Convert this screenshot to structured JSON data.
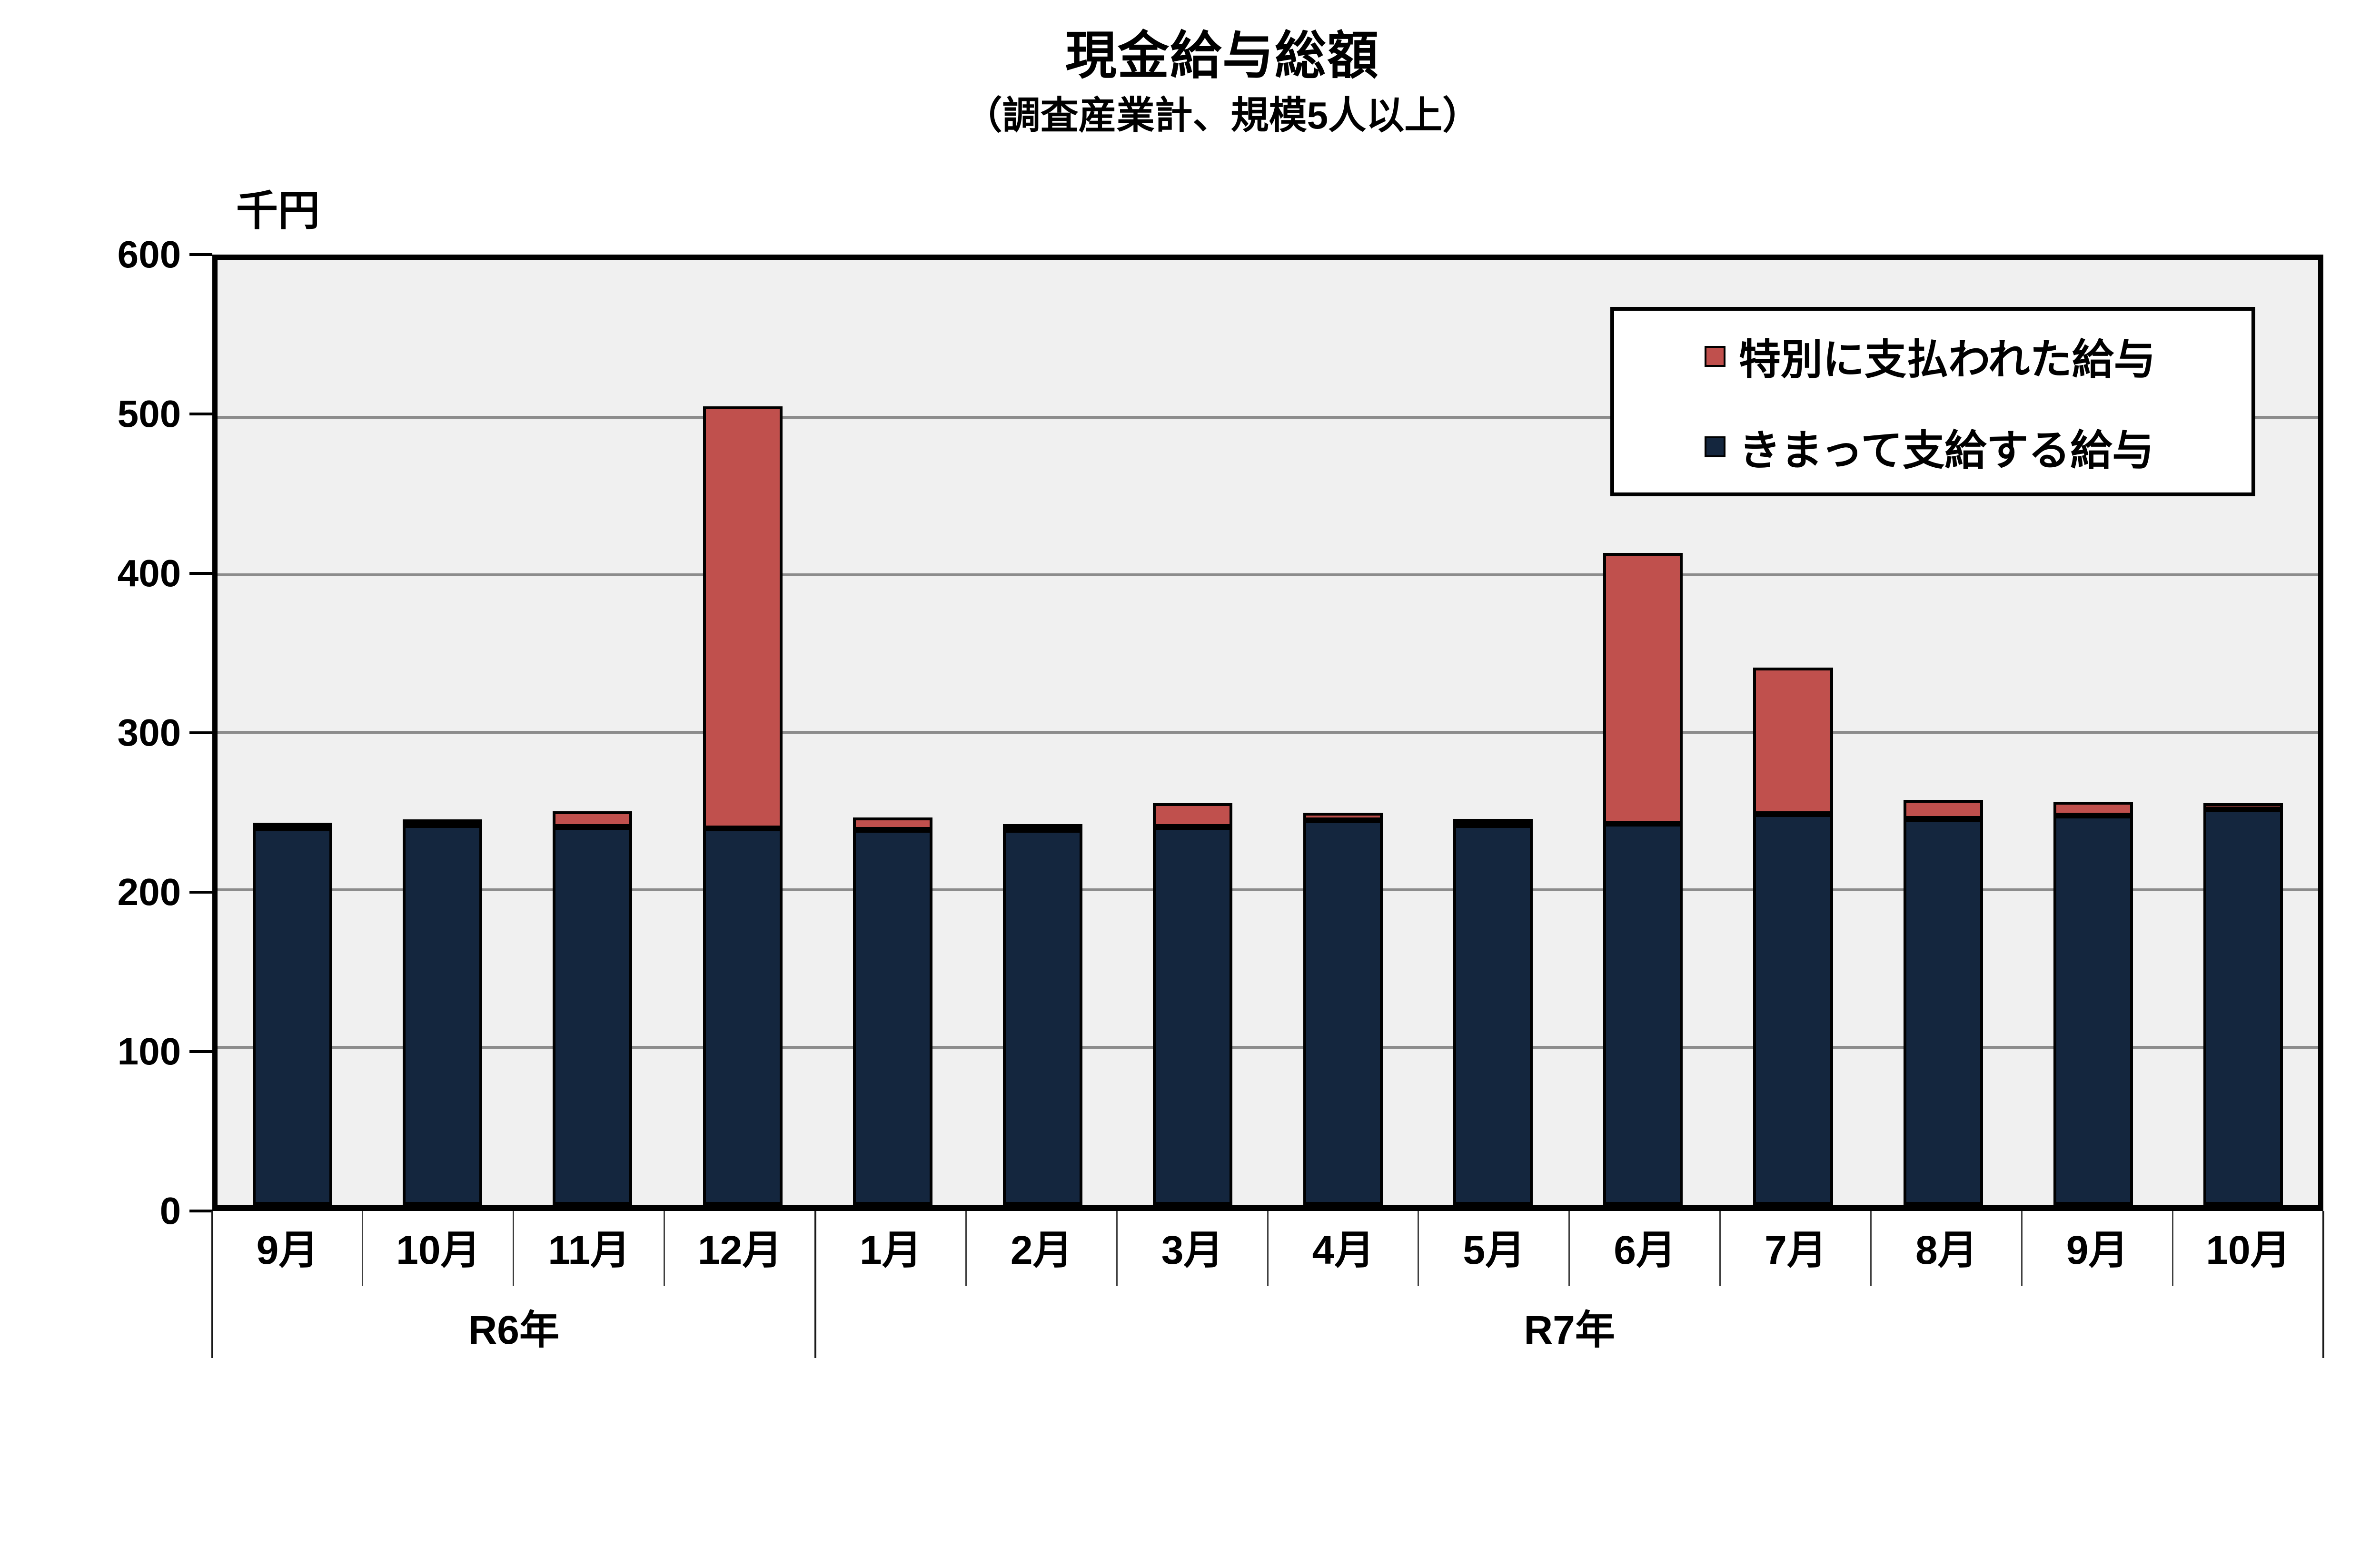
{
  "title": "現金給与総額",
  "subtitle": "（調査産業計、規模5人以上）",
  "y_axis": {
    "unit_label": "千円",
    "tick_values": [
      600,
      500,
      400,
      300,
      200,
      100,
      0
    ]
  },
  "legend": [
    {
      "label": "特別に支払われた給与",
      "color": "#C0504D"
    },
    {
      "label": "きまって支給する給与",
      "color": "#14263E"
    }
  ],
  "colors": {
    "plot_background": "#F0F0F0",
    "gridline": "#8C8C8C",
    "bar_border": "#000000",
    "special_pay_red": "#C0504D",
    "regular_pay_navy": "#14263E"
  },
  "chart_data": {
    "type": "bar",
    "stacked": true,
    "title": "現金給与総額",
    "subtitle": "（調査産業計、規模5人以上）",
    "ylabel": "千円",
    "ylim": [
      0,
      600
    ],
    "y_tick_step": 100,
    "grid": true,
    "legend_position": "upper right inside plot",
    "categories": [
      "9月",
      "10月",
      "11月",
      "12月",
      "1月",
      "2月",
      "3月",
      "4月",
      "5月",
      "6月",
      "7月",
      "8月",
      "9月",
      "10月"
    ],
    "category_groups": [
      {
        "label": "R6年",
        "start": 0,
        "count": 4
      },
      {
        "label": "R7年",
        "start": 4,
        "count": 10
      }
    ],
    "series": [
      {
        "name": "きまって支給する給与",
        "color": "#14263E",
        "values": [
          239,
          241,
          240,
          239,
          238,
          238,
          240,
          244,
          241,
          242,
          248,
          245,
          247,
          251
        ]
      },
      {
        "name": "特別に支払われた給与",
        "color": "#C0504D",
        "values": [
          3,
          3,
          10,
          268,
          8,
          1,
          15,
          5,
          4,
          172,
          93,
          12,
          9,
          4
        ]
      }
    ],
    "totals": [
      242,
      244,
      250,
      507,
      246,
      239,
      255,
      249,
      245,
      414,
      341,
      257,
      256,
      255
    ]
  }
}
